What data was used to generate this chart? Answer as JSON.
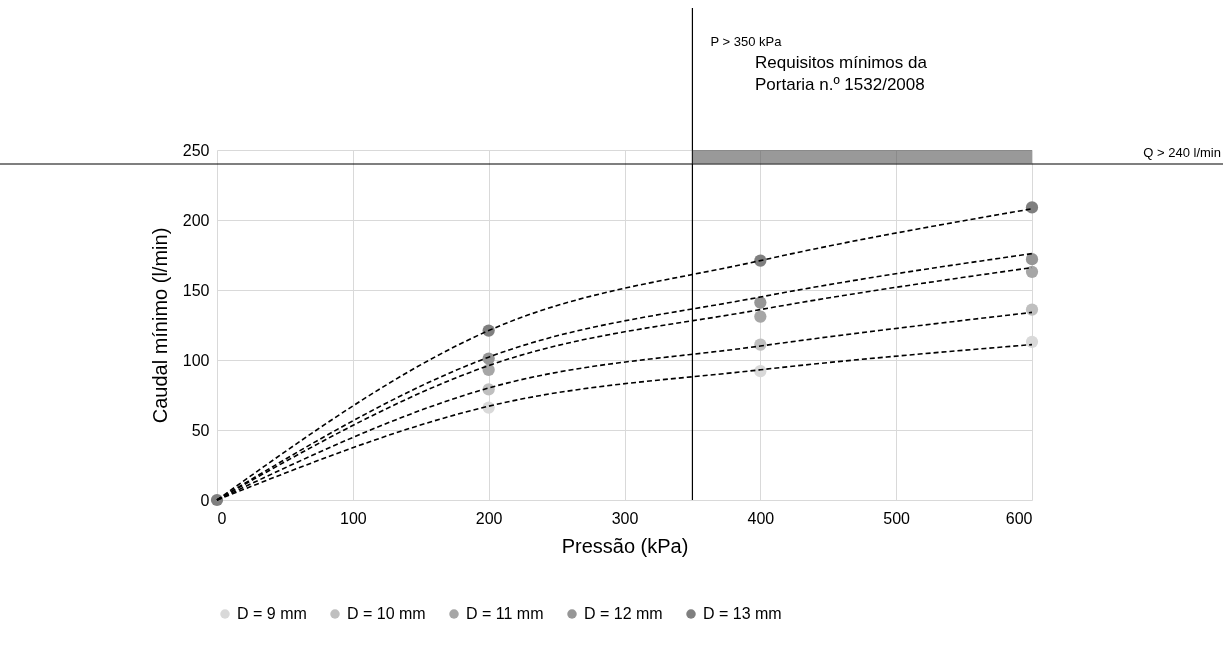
{
  "chart_data": {
    "type": "scatter",
    "xlabel": "Pressão (kPa)",
    "ylabel": "Caudal mínimo (l/min)",
    "xlim": [
      0,
      600
    ],
    "xticks": [
      0,
      100,
      200,
      300,
      400,
      500,
      600
    ],
    "ylim": [
      0,
      250
    ],
    "yticks": [
      0,
      50,
      100,
      150,
      200,
      250
    ],
    "grid": true,
    "legend": "bottom",
    "marker": "circle",
    "series": [
      {
        "name": "D = 9 mm",
        "color": "#d9d9d9",
        "x": [
          200,
          400,
          600
        ],
        "values": [
          66,
          92,
          113
        ]
      },
      {
        "name": "D = 10 mm",
        "color": "#bfbfbf",
        "x": [
          200,
          400,
          600
        ],
        "values": [
          79,
          111,
          136
        ]
      },
      {
        "name": "D = 11 mm",
        "color": "#a6a6a6",
        "x": [
          200,
          400,
          600
        ],
        "values": [
          93,
          131,
          163
        ]
      },
      {
        "name": "D = 12 mm",
        "color": "#969696",
        "x": [
          200,
          400,
          600
        ],
        "values": [
          101,
          141,
          172
        ]
      },
      {
        "name": "D = 13 mm",
        "color": "#7f7f7f",
        "x": [
          0,
          200,
          400,
          600
        ],
        "values": [
          0,
          121,
          171,
          209
        ]
      },
      {
        "type": "line",
        "color": "#000000",
        "line_style": "dashed",
        "marker": "none",
        "x": [
          0,
          200,
          400,
          600
        ],
        "values": [
          0,
          67,
          93,
          111
        ]
      },
      {
        "type": "line",
        "color": "#000000",
        "line_style": "dashed",
        "marker": "none",
        "x": [
          0,
          200,
          400,
          600
        ],
        "values": [
          0,
          80,
          110,
          134
        ]
      },
      {
        "type": "line",
        "color": "#000000",
        "line_style": "dashed",
        "marker": "none",
        "x": [
          0,
          200,
          400,
          600
        ],
        "values": [
          0,
          96,
          136,
          166
        ]
      },
      {
        "type": "line",
        "color": "#000000",
        "line_style": "dashed",
        "marker": "none",
        "x": [
          0,
          200,
          400,
          600
        ],
        "values": [
          0,
          102,
          145,
          176
        ]
      },
      {
        "type": "line",
        "color": "#000000",
        "line_style": "dashed",
        "marker": "none",
        "x": [
          0,
          200,
          400,
          600
        ],
        "values": [
          0,
          121,
          171,
          208
        ]
      }
    ],
    "ref_lines": [
      {
        "axis": "x",
        "value": 350,
        "label": "P > 350 kPa",
        "color": "#000000"
      },
      {
        "axis": "y",
        "value": 240,
        "label": "Q > 240 l/min",
        "color": "#000000"
      }
    ],
    "bands": [
      {
        "axis": "y",
        "from": 240,
        "to": 250,
        "color": "#555555"
      }
    ],
    "annotations": [
      "Requisitos mínimos da\nPortaria n.º 1532/2008"
    ]
  }
}
